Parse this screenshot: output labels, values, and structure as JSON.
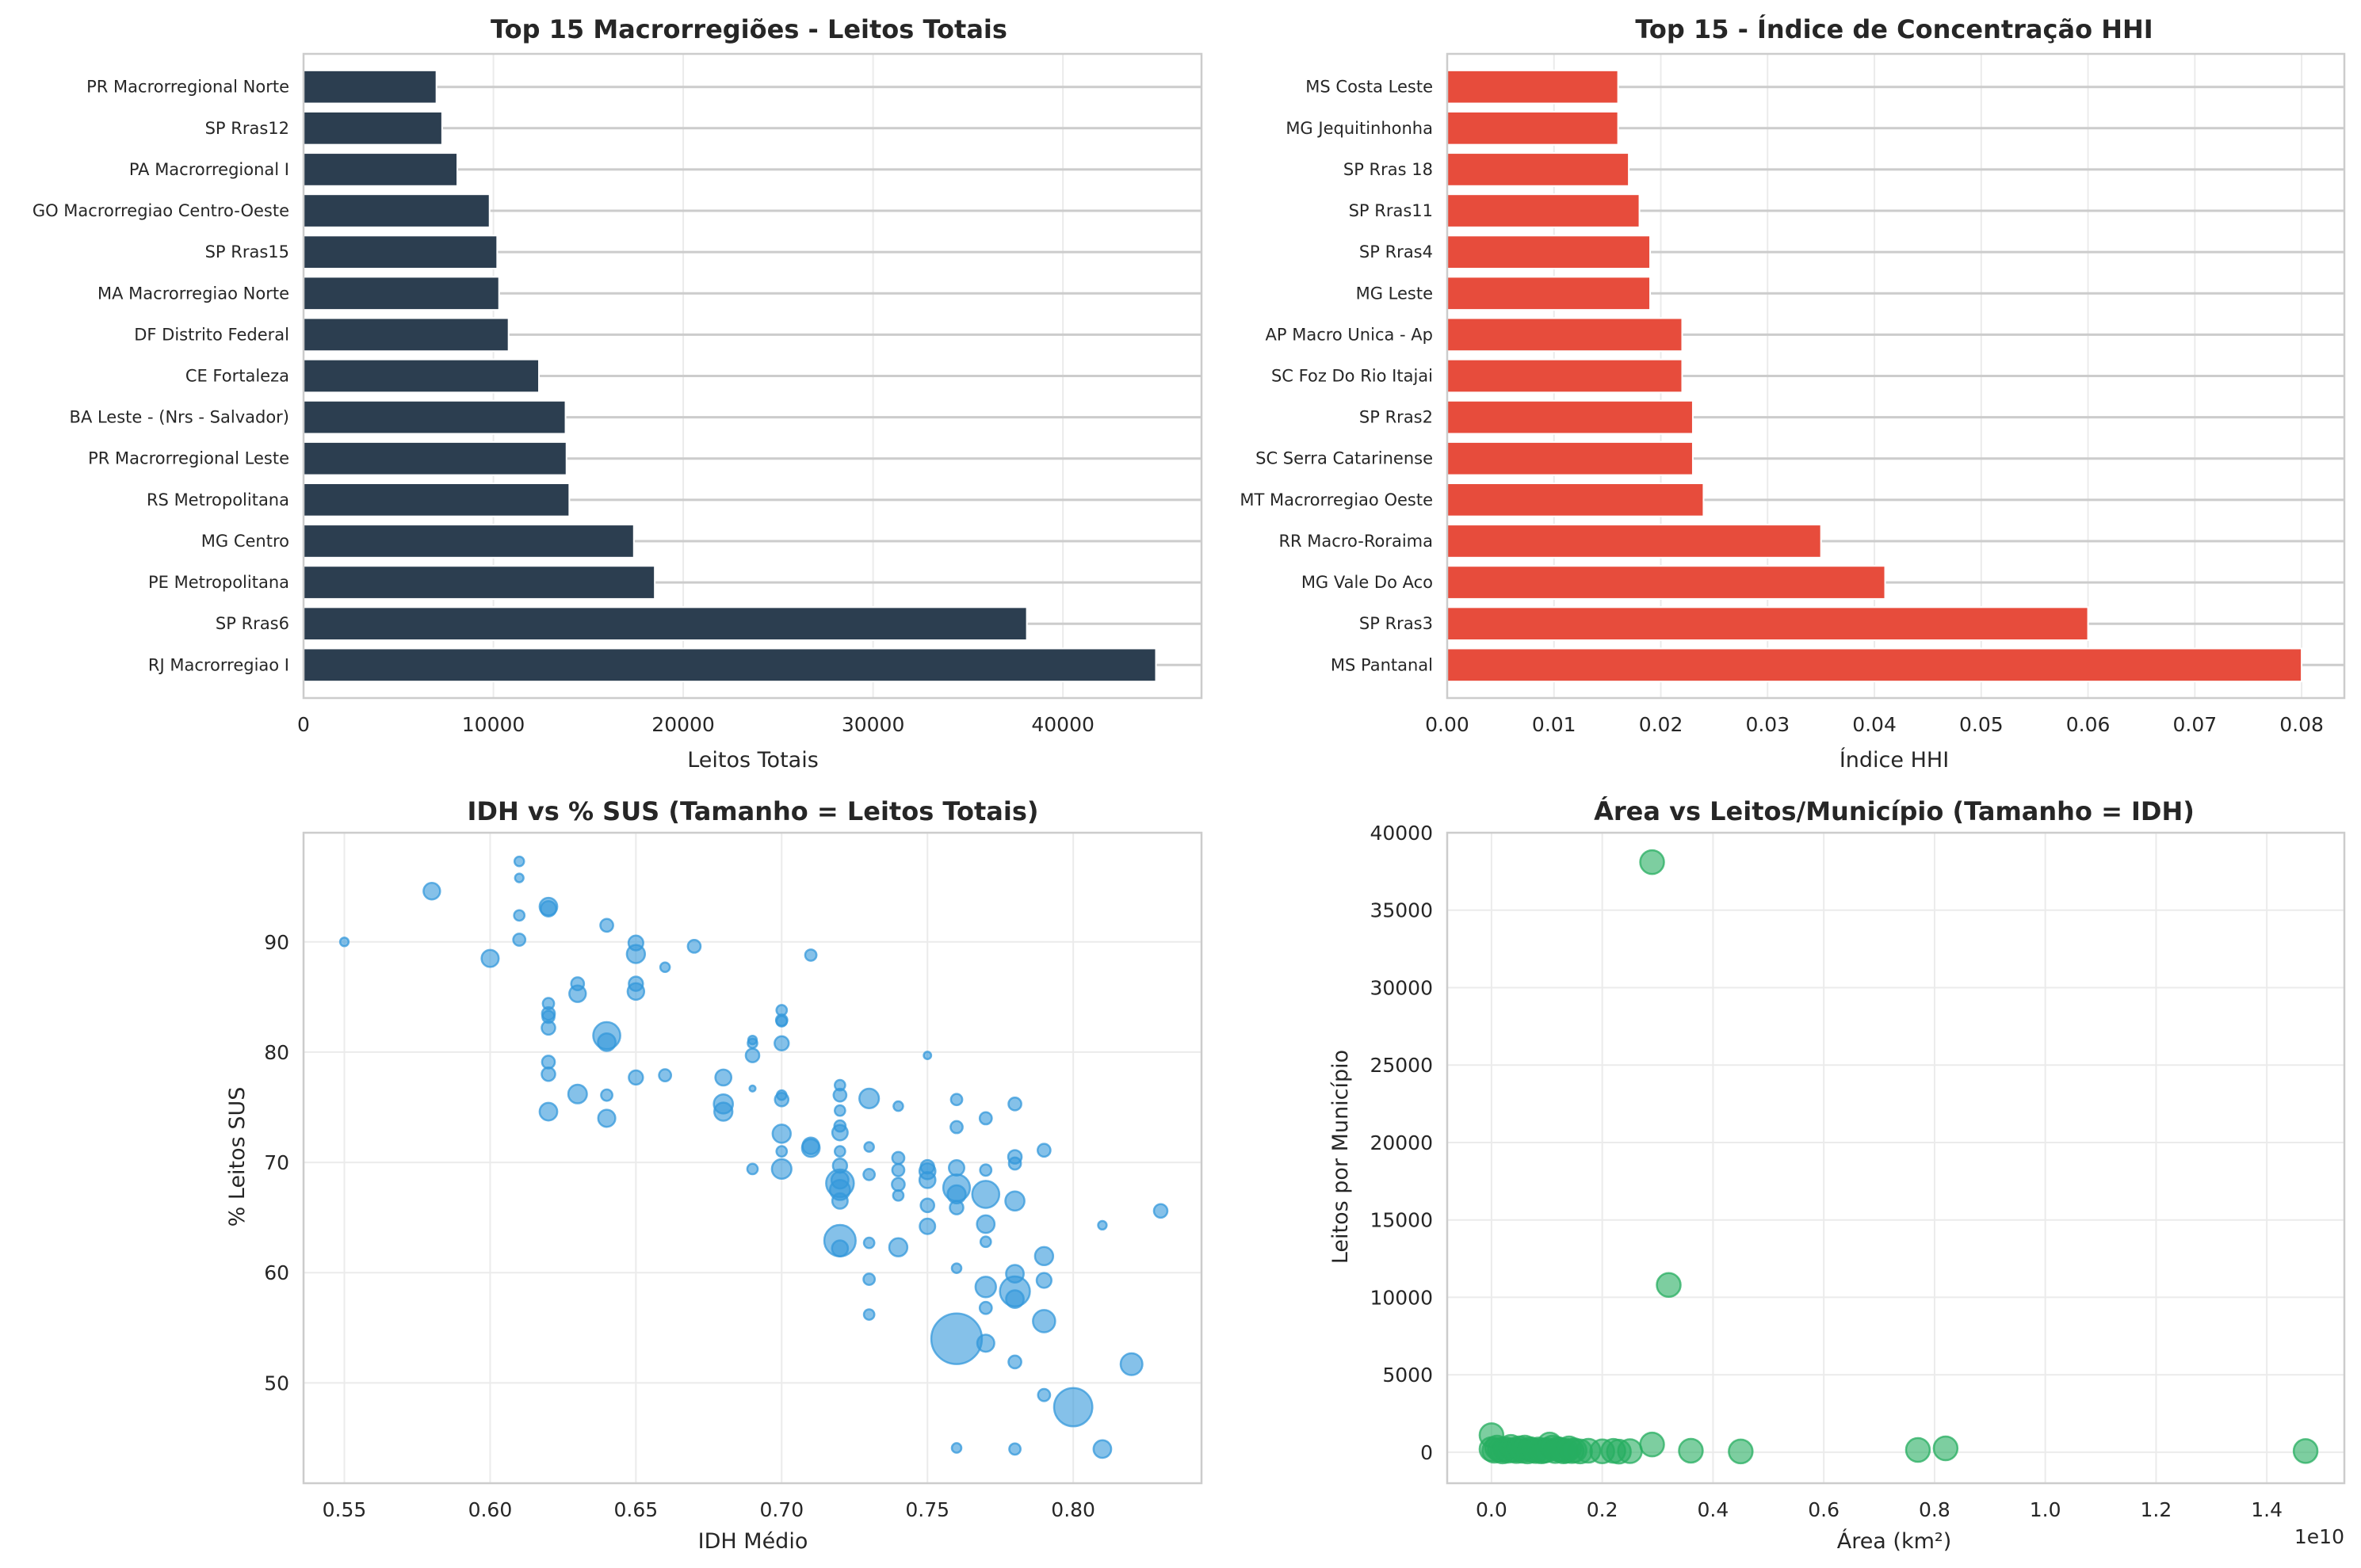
{
  "chart_data": [
    {
      "type": "bar",
      "orientation": "horizontal",
      "title": "Top 15 Macrorregiões - Leitos Totais",
      "xlabel": "Leitos Totais",
      "ylabel": "",
      "xlim": [
        0,
        47300
      ],
      "xticks": [
        0,
        10000,
        20000,
        30000,
        40000
      ],
      "xtick_labels": [
        "0",
        "10000",
        "20000",
        "30000",
        "40000"
      ],
      "color": "#2c3e50",
      "grid": true,
      "categories": [
        "RJ Macrorregiao I",
        "SP Rras6",
        "PE Metropolitana",
        "MG Centro",
        "RS Metropolitana",
        "PR Macrorregional Leste",
        "BA Leste - (Nrs - Salvador)",
        "CE Fortaleza",
        "DF Distrito Federal",
        "MA Macrorregiao Norte",
        "SP Rras15",
        "GO Macrorregiao Centro-Oeste",
        "PA Macrorregional I",
        "SP Rras12",
        "PR Macrorregional Norte"
      ],
      "values": [
        44900,
        38100,
        18500,
        17400,
        14000,
        13850,
        13800,
        12400,
        10800,
        10300,
        10200,
        9800,
        8100,
        7300,
        7000
      ]
    },
    {
      "type": "bar",
      "orientation": "horizontal",
      "title": "Top 15 - Índice de Concentração HHI",
      "xlabel": "Índice HHI",
      "ylabel": "",
      "xlim": [
        0,
        0.084
      ],
      "xticks": [
        0,
        0.01,
        0.02,
        0.03,
        0.04,
        0.05,
        0.06,
        0.07,
        0.08
      ],
      "xtick_labels": [
        "0.00",
        "0.01",
        "0.02",
        "0.03",
        "0.04",
        "0.05",
        "0.06",
        "0.07",
        "0.08"
      ],
      "color": "#e74c3c",
      "grid": true,
      "categories": [
        "MS Pantanal",
        "SP Rras3",
        "MG Vale Do Aco",
        "RR Macro-Roraima",
        "MT Macrorregiao Oeste",
        "SC Serra Catarinense",
        "SP Rras2",
        "SC Foz Do Rio Itajai",
        "AP Macro Unica - Ap",
        "MG Leste",
        "SP Rras4",
        "SP Rras11",
        "SP Rras 18",
        "MG Jequitinhonha",
        "MS Costa Leste"
      ],
      "values": [
        0.08,
        0.06,
        0.041,
        0.035,
        0.024,
        0.023,
        0.023,
        0.022,
        0.022,
        0.019,
        0.019,
        0.018,
        0.017,
        0.016,
        0.016
      ]
    },
    {
      "type": "scatter",
      "title": "IDH vs % SUS (Tamanho = Leitos Totais)",
      "xlabel": "IDH Médio",
      "ylabel": "% Leitos SUS",
      "xlim": [
        0.536,
        0.844
      ],
      "ylim": [
        40.9,
        99.9
      ],
      "xticks": [
        0.55,
        0.6,
        0.65,
        0.7,
        0.75,
        0.8
      ],
      "xtick_labels": [
        "0.55",
        "0.60",
        "0.65",
        "0.70",
        "0.75",
        "0.80"
      ],
      "yticks": [
        50,
        60,
        70,
        80,
        90
      ],
      "ytick_labels": [
        "50",
        "60",
        "70",
        "80",
        "90"
      ],
      "color": "#3498db",
      "alpha": 0.6,
      "size_encoding": "Leitos Totais",
      "grid": true,
      "points": [
        [
          0.55,
          90.0,
          400
        ],
        [
          0.58,
          94.6,
          1500
        ],
        [
          0.6,
          88.5,
          1600
        ],
        [
          0.61,
          97.3,
          500
        ],
        [
          0.61,
          95.8,
          400
        ],
        [
          0.61,
          92.4,
          600
        ],
        [
          0.61,
          90.2,
          800
        ],
        [
          0.62,
          93.2,
          1700
        ],
        [
          0.62,
          93.0,
          1300
        ],
        [
          0.62,
          84.4,
          700
        ],
        [
          0.62,
          83.5,
          900
        ],
        [
          0.62,
          83.2,
          800
        ],
        [
          0.62,
          82.2,
          1000
        ],
        [
          0.62,
          79.1,
          900
        ],
        [
          0.62,
          78.0,
          1000
        ],
        [
          0.62,
          74.6,
          1700
        ],
        [
          0.63,
          86.2,
          900
        ],
        [
          0.63,
          85.3,
          1500
        ],
        [
          0.63,
          76.2,
          1900
        ],
        [
          0.64,
          91.5,
          900
        ],
        [
          0.64,
          81.5,
          4000
        ],
        [
          0.64,
          80.9,
          1700
        ],
        [
          0.64,
          76.1,
          700
        ],
        [
          0.64,
          74.0,
          1600
        ],
        [
          0.65,
          89.9,
          1200
        ],
        [
          0.65,
          88.9,
          1800
        ],
        [
          0.65,
          86.2,
          1100
        ],
        [
          0.65,
          85.5,
          1500
        ],
        [
          0.65,
          77.7,
          1100
        ],
        [
          0.66,
          87.7,
          500
        ],
        [
          0.66,
          77.9,
          800
        ],
        [
          0.67,
          89.6,
          900
        ],
        [
          0.68,
          77.7,
          1400
        ],
        [
          0.68,
          75.3,
          2000
        ],
        [
          0.68,
          74.6,
          1800
        ],
        [
          0.69,
          81.1,
          400
        ],
        [
          0.69,
          80.8,
          500
        ],
        [
          0.69,
          79.7,
          1000
        ],
        [
          0.69,
          76.7,
          200
        ],
        [
          0.69,
          69.4,
          600
        ],
        [
          0.7,
          83.8,
          600
        ],
        [
          0.7,
          82.9,
          700
        ],
        [
          0.7,
          82.8,
          600
        ],
        [
          0.7,
          80.8,
          1100
        ],
        [
          0.7,
          76.1,
          500
        ],
        [
          0.7,
          75.7,
          1000
        ],
        [
          0.7,
          72.6,
          1800
        ],
        [
          0.7,
          71.0,
          600
        ],
        [
          0.7,
          69.4,
          2100
        ],
        [
          0.71,
          88.8,
          700
        ],
        [
          0.71,
          71.5,
          1500
        ],
        [
          0.71,
          71.3,
          1700
        ],
        [
          0.72,
          77.0,
          600
        ],
        [
          0.72,
          76.1,
          900
        ],
        [
          0.72,
          74.7,
          600
        ],
        [
          0.72,
          73.3,
          700
        ],
        [
          0.72,
          72.7,
          1300
        ],
        [
          0.72,
          71.0,
          600
        ],
        [
          0.72,
          69.7,
          1100
        ],
        [
          0.72,
          68.4,
          1600
        ],
        [
          0.72,
          68.1,
          4200
        ],
        [
          0.72,
          67.5,
          2200
        ],
        [
          0.72,
          66.5,
          1300
        ],
        [
          0.72,
          62.9,
          5400
        ],
        [
          0.72,
          62.2,
          1400
        ],
        [
          0.73,
          75.8,
          2100
        ],
        [
          0.73,
          71.4,
          500
        ],
        [
          0.73,
          68.9,
          700
        ],
        [
          0.73,
          62.7,
          600
        ],
        [
          0.73,
          59.4,
          700
        ],
        [
          0.73,
          56.2,
          600
        ],
        [
          0.74,
          75.1,
          500
        ],
        [
          0.74,
          70.4,
          800
        ],
        [
          0.74,
          69.3,
          800
        ],
        [
          0.74,
          68.0,
          900
        ],
        [
          0.74,
          67.0,
          600
        ],
        [
          0.74,
          62.3,
          1800
        ],
        [
          0.75,
          79.7,
          300
        ],
        [
          0.75,
          69.6,
          1000
        ],
        [
          0.75,
          69.2,
          1400
        ],
        [
          0.75,
          68.4,
          1400
        ],
        [
          0.75,
          66.1,
          1000
        ],
        [
          0.75,
          64.2,
          1300
        ],
        [
          0.76,
          75.7,
          700
        ],
        [
          0.76,
          73.2,
          800
        ],
        [
          0.76,
          69.5,
          1300
        ],
        [
          0.76,
          67.7,
          3900
        ],
        [
          0.76,
          67.1,
          1800
        ],
        [
          0.76,
          65.9,
          1000
        ],
        [
          0.76,
          60.4,
          500
        ],
        [
          0.76,
          54.0,
          14000
        ],
        [
          0.76,
          44.1,
          500
        ],
        [
          0.77,
          74.0,
          800
        ],
        [
          0.77,
          69.3,
          700
        ],
        [
          0.77,
          67.1,
          4000
        ],
        [
          0.77,
          64.4,
          1700
        ],
        [
          0.77,
          62.8,
          600
        ],
        [
          0.77,
          58.7,
          2300
        ],
        [
          0.77,
          56.8,
          800
        ],
        [
          0.77,
          53.6,
          1600
        ],
        [
          0.78,
          75.3,
          900
        ],
        [
          0.78,
          70.5,
          1000
        ],
        [
          0.78,
          69.9,
          800
        ],
        [
          0.78,
          66.5,
          2000
        ],
        [
          0.78,
          59.9,
          1700
        ],
        [
          0.78,
          58.3,
          4900
        ],
        [
          0.78,
          57.6,
          1700
        ],
        [
          0.78,
          51.9,
          900
        ],
        [
          0.78,
          44.0,
          700
        ],
        [
          0.79,
          71.1,
          900
        ],
        [
          0.79,
          61.5,
          1800
        ],
        [
          0.79,
          59.3,
          1200
        ],
        [
          0.79,
          55.6,
          2700
        ],
        [
          0.79,
          48.9,
          800
        ],
        [
          0.8,
          47.8,
          8000
        ],
        [
          0.81,
          64.3,
          400
        ],
        [
          0.81,
          44.0,
          1700
        ],
        [
          0.82,
          51.7,
          2600
        ],
        [
          0.83,
          65.6,
          1000
        ]
      ]
    },
    {
      "type": "scatter",
      "title": "Área vs Leitos/Município (Tamanho = IDH)",
      "xlabel": "Área (km²)",
      "ylabel": "Leitos por Município",
      "x_offset_label": "1e10",
      "xlim": [
        -0.08,
        1.54
      ],
      "ylim": [
        -2000,
        40000
      ],
      "xticks": [
        0.0,
        0.2,
        0.4,
        0.6,
        0.8,
        1.0,
        1.2,
        1.4
      ],
      "xtick_labels": [
        "0.0",
        "0.2",
        "0.4",
        "0.6",
        "0.8",
        "1.0",
        "1.2",
        "1.4"
      ],
      "yticks": [
        0,
        5000,
        10000,
        15000,
        20000,
        25000,
        30000,
        35000,
        40000
      ],
      "ytick_labels": [
        "0",
        "5000",
        "10000",
        "15000",
        "20000",
        "25000",
        "30000",
        "35000",
        "40000"
      ],
      "x_unit_multiplier": 10000000000,
      "color": "#27ae60",
      "alpha": 0.6,
      "size_encoding": "IDH",
      "grid": true,
      "points": [
        [
          0.29,
          38100
        ],
        [
          0.32,
          10800
        ],
        [
          0.0,
          1100
        ],
        [
          0.29,
          500
        ],
        [
          0.36,
          100
        ],
        [
          0.45,
          50
        ],
        [
          0.77,
          150
        ],
        [
          0.82,
          250
        ],
        [
          1.47,
          80
        ],
        [
          0.0,
          200
        ],
        [
          0.005,
          100
        ],
        [
          0.01,
          300
        ],
        [
          0.015,
          150
        ],
        [
          0.02,
          50
        ],
        [
          0.025,
          200
        ],
        [
          0.03,
          100
        ],
        [
          0.035,
          350
        ],
        [
          0.04,
          150
        ],
        [
          0.045,
          80
        ],
        [
          0.05,
          250
        ],
        [
          0.055,
          100
        ],
        [
          0.06,
          300
        ],
        [
          0.065,
          50
        ],
        [
          0.07,
          200
        ],
        [
          0.075,
          120
        ],
        [
          0.08,
          80
        ],
        [
          0.085,
          180
        ],
        [
          0.09,
          60
        ],
        [
          0.095,
          100
        ],
        [
          0.1,
          140
        ],
        [
          0.105,
          500
        ],
        [
          0.11,
          300
        ],
        [
          0.115,
          80
        ],
        [
          0.12,
          200
        ],
        [
          0.125,
          150
        ],
        [
          0.13,
          60
        ],
        [
          0.135,
          100
        ],
        [
          0.14,
          250
        ],
        [
          0.145,
          80
        ],
        [
          0.15,
          120
        ],
        [
          0.16,
          50
        ],
        [
          0.175,
          100
        ],
        [
          0.2,
          60
        ],
        [
          0.22,
          90
        ],
        [
          0.23,
          40
        ],
        [
          0.25,
          70
        ]
      ]
    }
  ]
}
